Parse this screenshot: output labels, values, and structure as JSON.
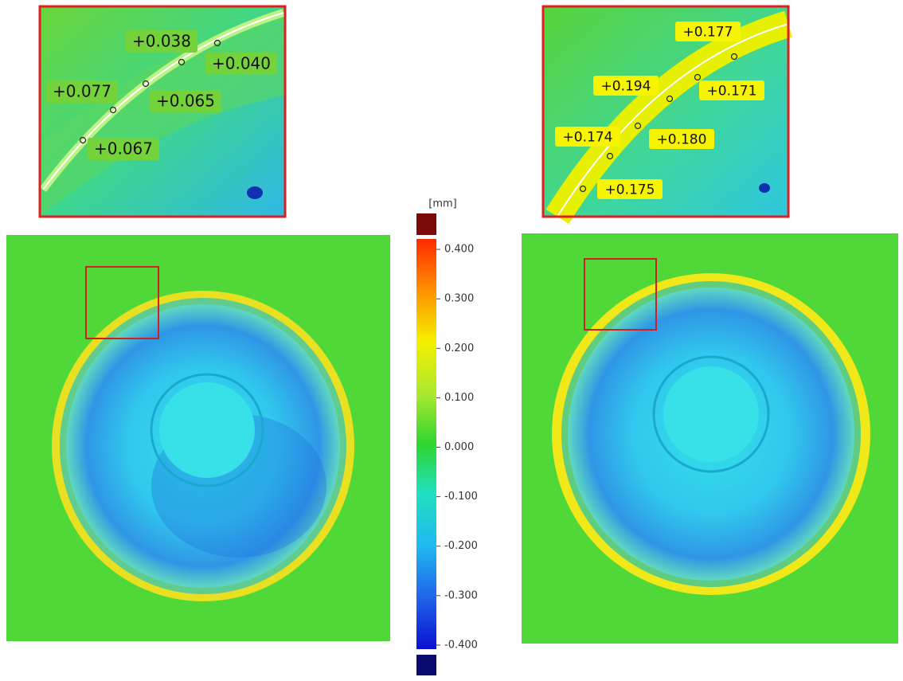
{
  "colorbar": {
    "unit": "[mm]",
    "ticks": [
      {
        "value": 0.4,
        "label": "0.400"
      },
      {
        "value": 0.3,
        "label": "0.300"
      },
      {
        "value": 0.2,
        "label": "0.200"
      },
      {
        "value": 0.1,
        "label": "0.100"
      },
      {
        "value": 0,
        "label": "0.000"
      },
      {
        "value": -0.1,
        "label": "-0.100"
      },
      {
        "value": -0.2,
        "label": "-0.200"
      },
      {
        "value": -0.3,
        "label": "-0.300"
      },
      {
        "value": -0.4,
        "label": "-0.400"
      }
    ]
  },
  "insets": [
    {
      "labels": [
        "+0.038",
        "+0.040",
        "+0.077",
        "+0.065",
        "+0.067"
      ]
    },
    {
      "labels": [
        "+0.177",
        "+0.194",
        "+0.171",
        "+0.174",
        "+0.180",
        "+0.175"
      ]
    }
  ]
}
